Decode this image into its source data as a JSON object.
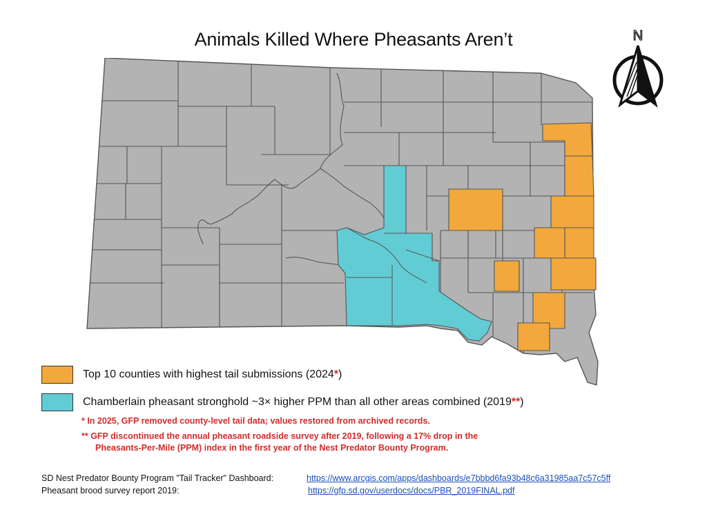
{
  "title": "Animals Killed Where Pheasants Aren’t",
  "north_arrow": {
    "letter": "N",
    "icon": "north-arrow-icon"
  },
  "colors": {
    "county_default": "#b3b3b3",
    "top10": "#f2a83c",
    "stronghold": "#62ccd4",
    "border": "#555555",
    "note_red": "#d42a2a",
    "link_blue": "#1b4fb8"
  },
  "legend": {
    "top10": {
      "label": "Top 10 counties with highest tail submissions (2024",
      "mark": "*",
      "close": ")"
    },
    "stronghold": {
      "label": "Chamberlain pheasant stronghold  ~3× higher PPM than all other areas combined (2019",
      "mark": "**",
      "close": ")"
    }
  },
  "notes": {
    "note1": "* In 2025, GFP removed county-level tail data; values restored from archived records.",
    "note2_line1": "** GFP discontinued the annual pheasant roadside survey after 2019, following a 17% drop in the",
    "note2_line2": "Pheasants-Per-Mile (PPM) index in the first year of the Nest Predator Bounty Program."
  },
  "sources": [
    {
      "label": "SD Nest Predator Bounty Program \"Tail Tracker\" Dashboard:",
      "url": "https://www.arcgis.com/apps/dashboards/e7bbbd6fa93b48c6a31985aa7c57c5ff"
    },
    {
      "label": "Pheasant brood survey report 2019:",
      "url": "https://gfp.sd.gov/userdocs/docs/PBR_2019FINAL.pdf"
    }
  ]
}
